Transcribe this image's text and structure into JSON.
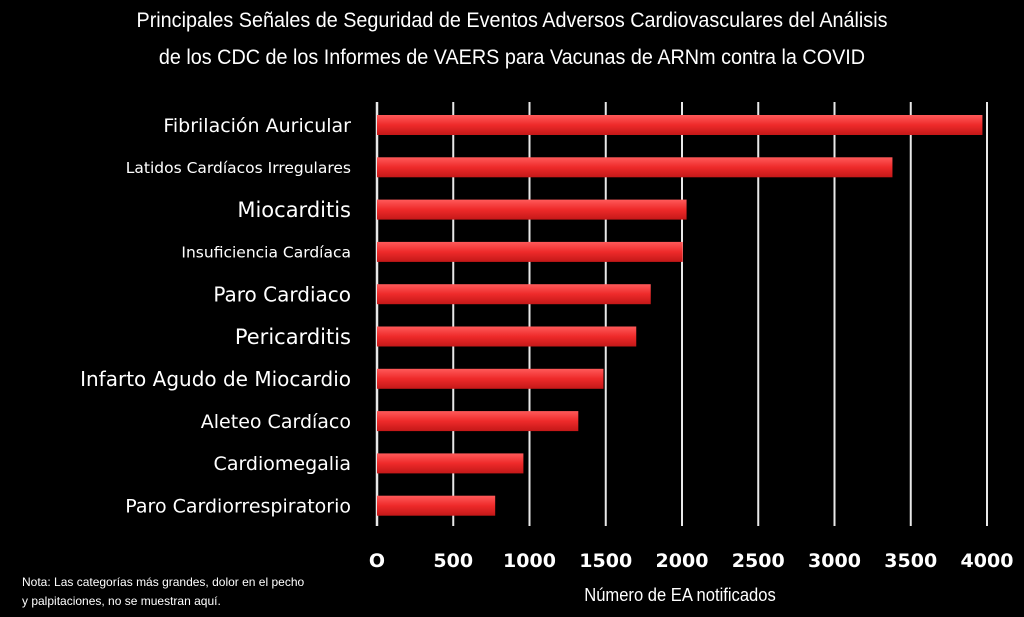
{
  "chart_data": {
    "type": "bar",
    "orientation": "horizontal",
    "title": "Principales Señales de Seguridad de Eventos Adversos Cardiovasculares del Análisis",
    "subtitle": "de los CDC de los Informes de VAERS para Vacunas de ARNm contra la COVID",
    "xlabel": "Número de EA notificados",
    "ylabel": "",
    "categories": [
      "Fibrilación Auricular",
      "Latidos Cardíacos Irregulares",
      "Miocarditis",
      "Insuficiencia Cardíaca",
      "Paro Cardiaco",
      "Pericarditis",
      "Infarto Agudo de Miocardio",
      "Aleteo Cardíaco",
      "Cardiomegalia",
      "Paro Cardiorrespiratorio"
    ],
    "values": [
      3970,
      3380,
      2030,
      2005,
      1795,
      1700,
      1485,
      1320,
      960,
      775
    ],
    "xlim": [
      0,
      4000
    ],
    "xticks": [
      "O",
      "500",
      "1000",
      "1500",
      "2000",
      "2500",
      "3000",
      "3500",
      "4000"
    ],
    "grid": "vertical",
    "legend": "none",
    "bar_color": "#ee2a2a",
    "background": "#000000",
    "note": [
      "Nota: Las categorías más grandes, dolor en el pecho",
      "y palpitaciones, no se muestran aquí."
    ]
  }
}
